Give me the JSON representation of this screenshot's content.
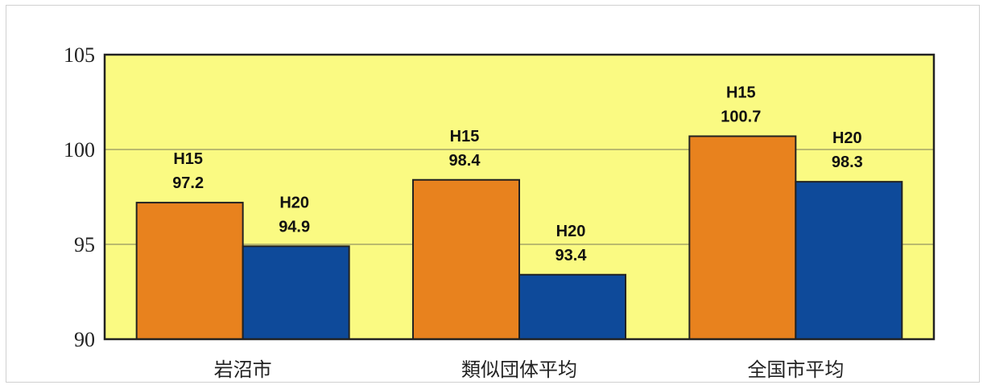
{
  "chart_data": {
    "type": "bar",
    "categories": [
      "岩沼市",
      "類似団体平均",
      "全国市平均"
    ],
    "series": [
      {
        "label": "H15",
        "values": [
          97.2,
          98.4,
          100.7
        ],
        "color": "#e8821e"
      },
      {
        "label": "H20",
        "values": [
          94.9,
          93.4,
          98.3
        ],
        "color": "#0e4a9a"
      }
    ],
    "y_ticks": [
      90,
      95,
      100,
      105
    ],
    "ylim": [
      90,
      105
    ],
    "grid": true,
    "plot_background": "#fafa82",
    "title": "",
    "xlabel": "",
    "ylabel": ""
  }
}
